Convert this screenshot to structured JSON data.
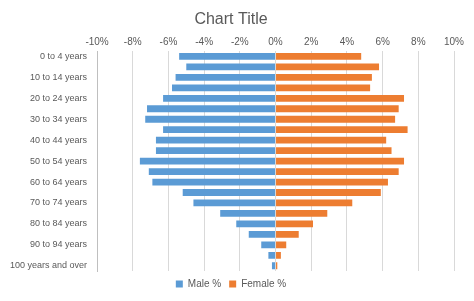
{
  "chart_data": {
    "type": "bar",
    "orientation": "horizontal",
    "title": "Chart Title",
    "categories": [
      "0 to 4 years",
      null,
      "10 to 14 years",
      null,
      "20 to 24 years",
      null,
      "30 to 34 years",
      null,
      "40 to 44 years",
      null,
      "50 to 54 years",
      null,
      "60 to 64 years",
      null,
      "70 to 74 years",
      null,
      "80 to 84 years",
      null,
      "90 to 94 years",
      null,
      "100 years and over"
    ],
    "series": [
      {
        "name": "Male %",
        "color": "#5b9bd5",
        "values": [
          -5.4,
          -5.0,
          -5.6,
          -5.8,
          -6.3,
          -7.2,
          -7.3,
          -6.3,
          -6.7,
          -6.7,
          -7.6,
          -7.1,
          -6.9,
          -5.2,
          -4.6,
          -3.1,
          -2.2,
          -1.5,
          -0.8,
          -0.4,
          -0.2
        ]
      },
      {
        "name": "Female %",
        "color": "#ed7d31",
        "values": [
          4.8,
          5.8,
          5.4,
          5.3,
          7.2,
          6.9,
          6.7,
          7.4,
          6.2,
          6.5,
          7.2,
          6.9,
          6.3,
          5.9,
          4.3,
          2.9,
          2.1,
          1.3,
          0.6,
          0.3,
          0.1
        ]
      }
    ],
    "xlim": [
      -10,
      10
    ],
    "xticks": [
      {
        "value": -10,
        "label": "-10%"
      },
      {
        "value": -8,
        "label": "-8%"
      },
      {
        "value": -6,
        "label": "-6%"
      },
      {
        "value": -4,
        "label": "-4%"
      },
      {
        "value": -2,
        "label": "-2%"
      },
      {
        "value": 0,
        "label": "0%"
      },
      {
        "value": 2,
        "label": "2%"
      },
      {
        "value": 4,
        "label": "4%"
      },
      {
        "value": 6,
        "label": "6%"
      },
      {
        "value": 8,
        "label": "8%"
      },
      {
        "value": 10,
        "label": "10%"
      }
    ],
    "grid": true,
    "legend": "bottom"
  }
}
